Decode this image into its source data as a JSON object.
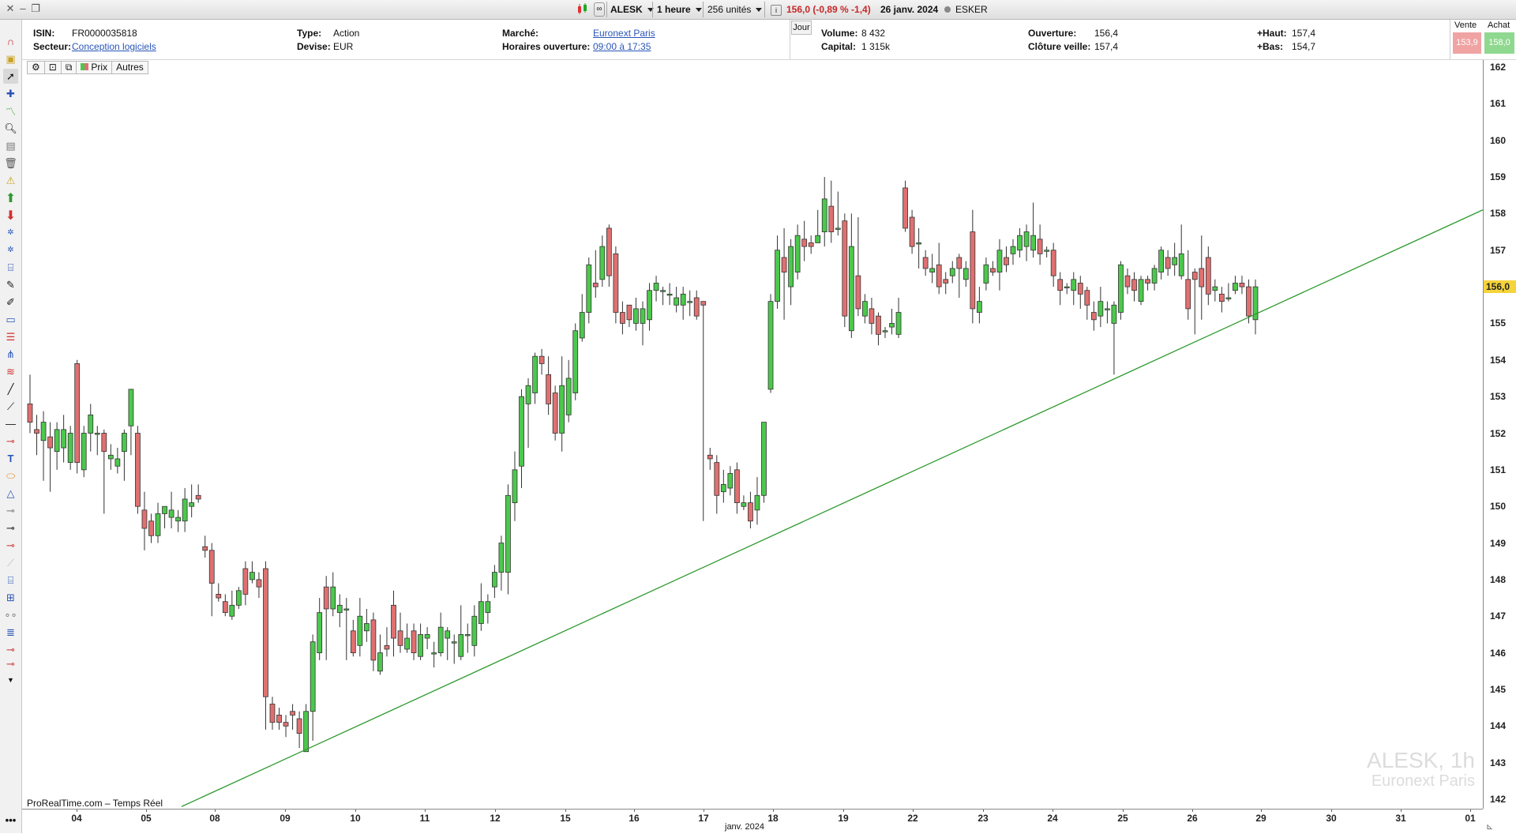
{
  "topbar": {
    "symbol": "ALESK",
    "interval": "1 heure",
    "units": "256 unités",
    "quote": "156,0 (-0,89 % -1,4)",
    "date": "26 janv. 2024",
    "name": "ESKER",
    "info_icon": "info-icon"
  },
  "info": {
    "isin_label": "ISIN:",
    "isin": "FR0000035818",
    "secteur_label": "Secteur:",
    "secteur": "Conception logiciels",
    "type_label": "Type:",
    "type": "Action",
    "devise_label": "Devise:",
    "devise": "EUR",
    "marche_label": "Marché:",
    "marche": "Euronext Paris",
    "horaires_label": "Horaires ouverture:",
    "horaires": "09:00 à 17:35",
    "jour_label": "Jour",
    "volume_label": "Volume:",
    "volume": "8 432",
    "capital_label": "Capital:",
    "capital": "1 315k",
    "ouverture_label": "Ouverture:",
    "ouverture": "156,4",
    "cloture_label": "Clôture veille:",
    "cloture": "157,4",
    "haut_label": "+Haut:",
    "haut": "157,4",
    "bas_label": "+Bas:",
    "bas": "154,7",
    "vente_label": "Vente",
    "vente": "153,9",
    "achat_label": "Achat",
    "achat": "158,0"
  },
  "chart_tabs": {
    "prix": "Prix",
    "autres": "Autres"
  },
  "footer": {
    "source": "ProRealTime.com – Temps Réel",
    "month_label": "janv. 2024"
  },
  "watermark": {
    "line1": "ALESK, 1h",
    "line2": "Euronext Paris"
  },
  "colors": {
    "up": "#4cc84c",
    "down": "#e07070",
    "trendline": "#2e9a2e",
    "last_badge": "#f5d43a"
  },
  "chart_data": {
    "type": "candlestick",
    "y_axis": {
      "min": 142,
      "max": 162,
      "ticks": [
        "162",
        "161",
        "160",
        "159",
        "158",
        "157",
        "156",
        "155",
        "154",
        "153",
        "152",
        "151",
        "150",
        "149",
        "148",
        "147",
        "146",
        "145",
        "144",
        "143",
        "142"
      ]
    },
    "x_ticks": [
      "04",
      "05",
      "08",
      "09",
      "10",
      "11",
      "12",
      "15",
      "16",
      "17",
      "18",
      "19",
      "22",
      "23",
      "24",
      "25",
      "26",
      "29",
      "30",
      "31",
      "01"
    ],
    "last_price": "156,0",
    "candles": [
      [
        152.8,
        152.3,
        153.6,
        152.0
      ],
      [
        152.1,
        152.0,
        152.5,
        151.4
      ],
      [
        151.8,
        152.3,
        152.6,
        150.7
      ],
      [
        151.9,
        151.6,
        152.3,
        150.4
      ],
      [
        151.5,
        152.1,
        152.3,
        151.0
      ],
      [
        151.6,
        152.1,
        152.5,
        151.2
      ],
      [
        151.2,
        152.0,
        152.2,
        151.0
      ],
      [
        153.9,
        151.2,
        154.0,
        150.9
      ],
      [
        151.0,
        152.0,
        152.2,
        150.8
      ],
      [
        152.0,
        152.5,
        152.8,
        151.5
      ],
      [
        152.0,
        152.0,
        152.2,
        151.4
      ],
      [
        152.0,
        151.5,
        152.1,
        149.8
      ],
      [
        151.3,
        151.4,
        151.7,
        151.0
      ],
      [
        151.1,
        151.3,
        151.6,
        150.9
      ],
      [
        151.5,
        152.0,
        152.1,
        150.7
      ],
      [
        152.2,
        153.2,
        153.2,
        151.4
      ],
      [
        152.0,
        150.0,
        152.2,
        149.8
      ],
      [
        149.9,
        149.4,
        150.4,
        148.8
      ],
      [
        149.6,
        149.2,
        149.8,
        149.0
      ],
      [
        149.2,
        149.8,
        150.1,
        149.0
      ],
      [
        149.8,
        150.0,
        150.0,
        149.4
      ],
      [
        149.7,
        149.9,
        150.4,
        149.4
      ],
      [
        149.6,
        149.7,
        149.9,
        149.3
      ],
      [
        149.6,
        150.2,
        150.5,
        149.3
      ],
      [
        150.0,
        150.1,
        150.6,
        149.7
      ],
      [
        150.3,
        150.2,
        150.6,
        150.1
      ],
      [
        148.9,
        148.8,
        149.2,
        148.6
      ],
      [
        148.8,
        147.9,
        149.0,
        147.0
      ],
      [
        147.6,
        147.5,
        147.9,
        147.4
      ],
      [
        147.4,
        147.1,
        147.6,
        147.0
      ],
      [
        147.0,
        147.3,
        147.7,
        146.9
      ],
      [
        147.3,
        147.7,
        147.8,
        147.2
      ],
      [
        148.3,
        147.6,
        148.5,
        147.3
      ],
      [
        148.0,
        148.2,
        148.5,
        147.9
      ],
      [
        148.0,
        147.8,
        148.2,
        147.5
      ],
      [
        148.3,
        144.8,
        148.5,
        143.9
      ],
      [
        144.6,
        144.1,
        144.8,
        143.9
      ],
      [
        144.3,
        144.1,
        144.5,
        143.9
      ],
      [
        144.1,
        144.0,
        144.3,
        143.7
      ],
      [
        144.4,
        144.3,
        144.6,
        143.9
      ],
      [
        144.2,
        143.8,
        144.4,
        143.4
      ],
      [
        143.3,
        144.4,
        144.6,
        143.3
      ],
      [
        144.4,
        146.3,
        146.5,
        143.6
      ],
      [
        146.0,
        147.1,
        147.5,
        145.8
      ],
      [
        147.8,
        147.2,
        148.1,
        145.8
      ],
      [
        147.2,
        147.8,
        148.2,
        147.0
      ],
      [
        147.1,
        147.3,
        147.6,
        146.7
      ],
      [
        147.2,
        147.2,
        147.5,
        145.8
      ],
      [
        146.6,
        146.0,
        146.9,
        145.9
      ],
      [
        146.2,
        147.0,
        147.5,
        145.9
      ],
      [
        146.6,
        146.8,
        147.2,
        146.3
      ],
      [
        146.9,
        145.8,
        147.1,
        145.5
      ],
      [
        145.5,
        146.0,
        146.5,
        145.4
      ],
      [
        146.2,
        146.1,
        146.7,
        145.9
      ],
      [
        147.3,
        146.4,
        147.7,
        145.9
      ],
      [
        146.6,
        146.2,
        147.1,
        146.0
      ],
      [
        146.1,
        146.4,
        146.8,
        146.0
      ],
      [
        146.6,
        146.0,
        146.8,
        145.8
      ],
      [
        145.9,
        146.5,
        146.8,
        145.8
      ],
      [
        146.4,
        146.5,
        146.7,
        146.1
      ],
      [
        146.0,
        146.0,
        146.3,
        145.6
      ],
      [
        146.0,
        146.7,
        147.1,
        145.9
      ],
      [
        146.4,
        146.6,
        146.7,
        145.8
      ],
      [
        146.3,
        146.3,
        146.5,
        145.7
      ],
      [
        145.9,
        146.5,
        147.3,
        145.8
      ],
      [
        146.5,
        146.5,
        146.8,
        146.0
      ],
      [
        146.2,
        147.0,
        147.3,
        145.9
      ],
      [
        146.8,
        147.4,
        147.9,
        146.6
      ],
      [
        147.1,
        147.4,
        147.6,
        146.8
      ],
      [
        147.8,
        148.2,
        148.4,
        147.5
      ],
      [
        148.2,
        149.0,
        149.2,
        147.7
      ],
      [
        148.2,
        150.3,
        150.6,
        147.6
      ],
      [
        150.1,
        151.0,
        151.5,
        149.6
      ],
      [
        151.1,
        153.0,
        153.2,
        150.5
      ],
      [
        152.8,
        153.3,
        153.5,
        151.6
      ],
      [
        153.1,
        154.1,
        154.2,
        152.8
      ],
      [
        154.1,
        153.9,
        154.3,
        153.6
      ],
      [
        153.6,
        152.8,
        154.1,
        152.5
      ],
      [
        153.1,
        152.0,
        153.3,
        151.8
      ],
      [
        152.0,
        153.3,
        154.1,
        151.5
      ],
      [
        152.5,
        153.5,
        154.0,
        152.3
      ],
      [
        153.1,
        154.8,
        155.0,
        152.9
      ],
      [
        154.6,
        155.3,
        155.8,
        154.5
      ],
      [
        155.3,
        156.6,
        156.8,
        155.0
      ],
      [
        156.1,
        156.0,
        157.0,
        155.7
      ],
      [
        156.2,
        157.1,
        157.4,
        156.0
      ],
      [
        157.6,
        156.3,
        157.7,
        156.0
      ],
      [
        156.9,
        155.3,
        157.1,
        155.0
      ],
      [
        155.3,
        155.0,
        155.6,
        154.7
      ],
      [
        155.5,
        155.1,
        155.5,
        154.9
      ],
      [
        155.0,
        155.4,
        155.7,
        154.8
      ],
      [
        155.0,
        155.4,
        155.6,
        154.4
      ],
      [
        155.1,
        155.9,
        156.1,
        154.8
      ],
      [
        155.9,
        156.1,
        156.3,
        155.6
      ],
      [
        155.9,
        155.9,
        156.0,
        155.5
      ],
      [
        155.8,
        155.8,
        156.1,
        155.5
      ],
      [
        155.5,
        155.7,
        156.0,
        155.3
      ],
      [
        155.5,
        155.8,
        156.0,
        155.1
      ],
      [
        155.6,
        155.6,
        155.9,
        155.2
      ],
      [
        155.7,
        155.2,
        155.9,
        155.1
      ],
      [
        155.6,
        155.5,
        155.6,
        149.6
      ],
      [
        151.4,
        151.3,
        151.6,
        151.0
      ],
      [
        151.2,
        150.3,
        151.4,
        149.8
      ],
      [
        150.4,
        150.6,
        151.0,
        150.1
      ],
      [
        150.5,
        150.9,
        151.1,
        150.3
      ],
      [
        151.0,
        150.1,
        151.2,
        149.8
      ],
      [
        150.0,
        150.1,
        150.3,
        149.9
      ],
      [
        150.1,
        149.6,
        150.4,
        149.4
      ],
      [
        149.9,
        150.3,
        150.8,
        149.5
      ],
      [
        150.3,
        152.3,
        152.3,
        150.1
      ],
      [
        153.2,
        155.6,
        155.8,
        153.1
      ],
      [
        155.6,
        157.0,
        157.4,
        155.4
      ],
      [
        156.8,
        156.4,
        157.6,
        155.1
      ],
      [
        156.0,
        157.1,
        157.3,
        155.5
      ],
      [
        156.4,
        157.4,
        157.7,
        156.2
      ],
      [
        157.3,
        157.1,
        157.8,
        156.7
      ],
      [
        157.2,
        157.1,
        157.4,
        156.9
      ],
      [
        157.2,
        157.4,
        158.1,
        157.2
      ],
      [
        157.5,
        158.4,
        159.0,
        157.1
      ],
      [
        158.2,
        157.5,
        158.9,
        157.2
      ],
      [
        157.6,
        157.6,
        158.6,
        157.4
      ],
      [
        157.8,
        155.2,
        158.0,
        154.9
      ],
      [
        154.8,
        157.1,
        158.0,
        154.6
      ],
      [
        156.3,
        155.4,
        157.9,
        155.2
      ],
      [
        155.2,
        155.6,
        155.8,
        155.0
      ],
      [
        155.4,
        155.0,
        155.7,
        154.7
      ],
      [
        155.2,
        154.7,
        155.3,
        154.4
      ],
      [
        154.8,
        154.8,
        154.9,
        154.6
      ],
      [
        154.9,
        155.0,
        155.4,
        154.7
      ],
      [
        154.7,
        155.3,
        155.7,
        154.6
      ],
      [
        158.7,
        157.6,
        158.9,
        157.5
      ],
      [
        157.9,
        157.1,
        158.1,
        156.9
      ],
      [
        157.2,
        157.2,
        157.6,
        156.5
      ],
      [
        156.8,
        156.5,
        157.0,
        156.3
      ],
      [
        156.4,
        156.5,
        156.9,
        156.1
      ],
      [
        156.6,
        156.0,
        157.2,
        155.8
      ],
      [
        156.2,
        156.1,
        156.4,
        155.8
      ],
      [
        156.3,
        156.5,
        156.7,
        156.1
      ],
      [
        156.8,
        156.5,
        156.9,
        155.7
      ],
      [
        156.2,
        156.5,
        156.7,
        156.0
      ],
      [
        157.5,
        155.4,
        158.1,
        155.0
      ],
      [
        155.3,
        155.6,
        156.0,
        155.0
      ],
      [
        156.1,
        156.6,
        156.8,
        155.9
      ],
      [
        156.5,
        156.4,
        156.7,
        156.3
      ],
      [
        156.4,
        157.0,
        157.3,
        155.9
      ],
      [
        156.8,
        156.6,
        157.1,
        156.4
      ],
      [
        156.9,
        157.1,
        157.3,
        156.6
      ],
      [
        157.0,
        157.4,
        157.6,
        156.8
      ],
      [
        157.1,
        157.5,
        157.7,
        156.7
      ],
      [
        157.0,
        157.4,
        158.3,
        156.8
      ],
      [
        157.3,
        156.9,
        157.7,
        156.6
      ],
      [
        157.0,
        157.0,
        157.1,
        156.8
      ],
      [
        157.0,
        156.3,
        157.2,
        156.0
      ],
      [
        156.2,
        155.9,
        156.4,
        155.5
      ],
      [
        156.0,
        156.0,
        156.1,
        155.8
      ],
      [
        155.9,
        156.2,
        156.4,
        155.5
      ],
      [
        156.1,
        155.8,
        156.3,
        155.4
      ],
      [
        155.9,
        155.5,
        156.0,
        155.1
      ],
      [
        155.3,
        155.1,
        155.6,
        154.8
      ],
      [
        155.2,
        155.6,
        156.0,
        154.9
      ],
      [
        155.4,
        155.4,
        155.6,
        155.0
      ],
      [
        155.0,
        155.5,
        155.6,
        153.6
      ],
      [
        155.3,
        156.6,
        156.7,
        155.1
      ],
      [
        156.3,
        156.0,
        156.5,
        155.8
      ],
      [
        156.2,
        155.9,
        156.4,
        155.6
      ],
      [
        155.6,
        156.2,
        156.3,
        155.5
      ],
      [
        156.2,
        156.1,
        156.3,
        155.9
      ],
      [
        156.1,
        156.5,
        156.6,
        155.9
      ],
      [
        156.4,
        157.0,
        157.1,
        156.2
      ],
      [
        156.8,
        156.5,
        157.0,
        156.3
      ],
      [
        156.6,
        156.8,
        157.2,
        156.3
      ],
      [
        156.3,
        156.9,
        157.7,
        156.2
      ],
      [
        156.2,
        155.4,
        157.0,
        155.1
      ],
      [
        156.4,
        156.2,
        156.5,
        154.7
      ],
      [
        156.5,
        156.0,
        157.4,
        155.1
      ],
      [
        156.8,
        155.8,
        157.1,
        155.5
      ],
      [
        155.9,
        156.0,
        156.2,
        155.6
      ],
      [
        155.8,
        155.6,
        156.0,
        155.3
      ],
      [
        155.7,
        155.7,
        156.1,
        155.6
      ],
      [
        155.9,
        156.1,
        156.3,
        155.8
      ],
      [
        156.1,
        156.0,
        156.3,
        155.8
      ],
      [
        156.0,
        155.2,
        156.2,
        155.0
      ],
      [
        155.1,
        156.0,
        156.2,
        154.7
      ]
    ],
    "trendline": {
      "from": [
        "05–08",
        141.8
      ],
      "to": [
        "01",
        158.1
      ]
    }
  }
}
